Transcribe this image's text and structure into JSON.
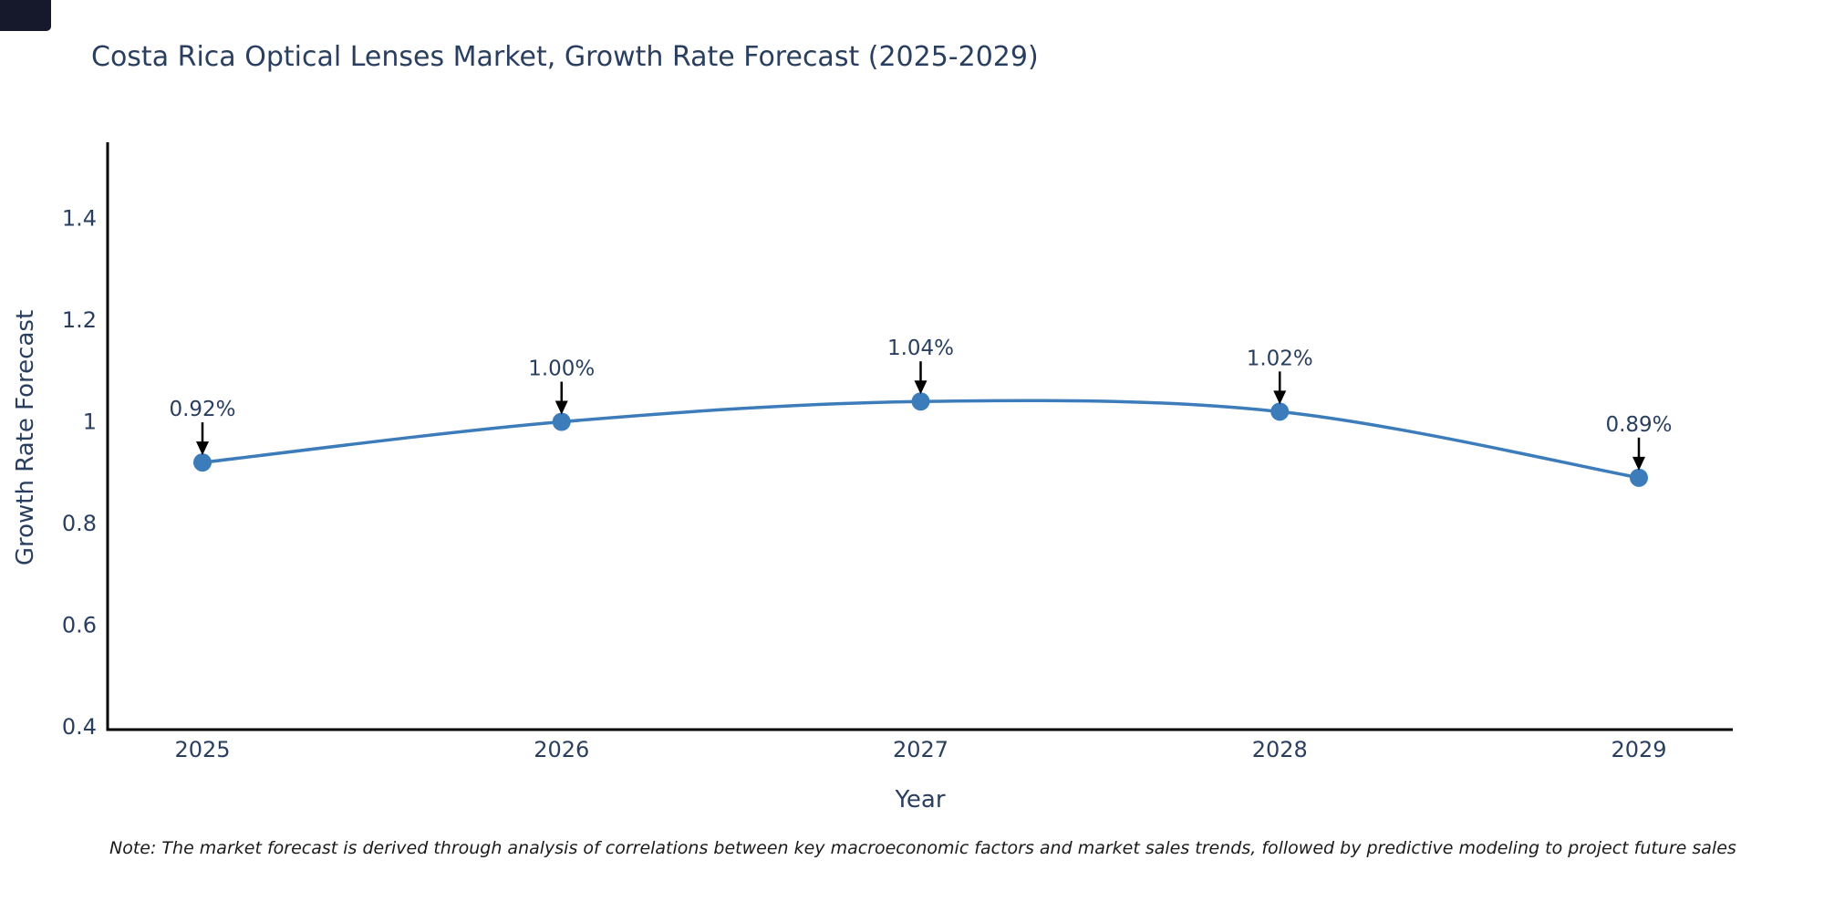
{
  "title": "Costa Rica Optical Lenses Market, Growth Rate Forecast (2025-2029)",
  "note": "Note: The market forecast is derived through analysis of correlations between key macroeconomic factors and market sales trends, followed by predictive modeling to project future sales",
  "chart_data": {
    "type": "line",
    "title": "Costa Rica Optical Lenses Market, Growth Rate Forecast (2025-2029)",
    "xlabel": "Year",
    "ylabel": "Growth Rate Forecast",
    "x": [
      2025,
      2026,
      2027,
      2028,
      2029
    ],
    "values": [
      0.92,
      1.0,
      1.04,
      1.02,
      0.89
    ],
    "point_labels": [
      "0.92%",
      "1.00%",
      "1.04%",
      "1.02%",
      "0.89%"
    ],
    "yticks": [
      0.4,
      0.6,
      0.8,
      1,
      1.2,
      1.4
    ],
    "xticks": [
      "2025",
      "2026",
      "2027",
      "2028",
      "2029"
    ],
    "ylim": [
      0.4,
      1.55
    ],
    "grid": false,
    "legend": "none",
    "line_shape": "spline",
    "line_color": "#3d7cba",
    "marker_color": "#3d7cba",
    "axis_line_color": "#000000",
    "annotation_arrow_color": "#000000",
    "text_color": "#2a3f5f"
  },
  "colors": {
    "background": "#ffffff",
    "title_text": "#2a3f5f",
    "note_text": "#1a1a1a",
    "corner_rect": "#16182c"
  }
}
